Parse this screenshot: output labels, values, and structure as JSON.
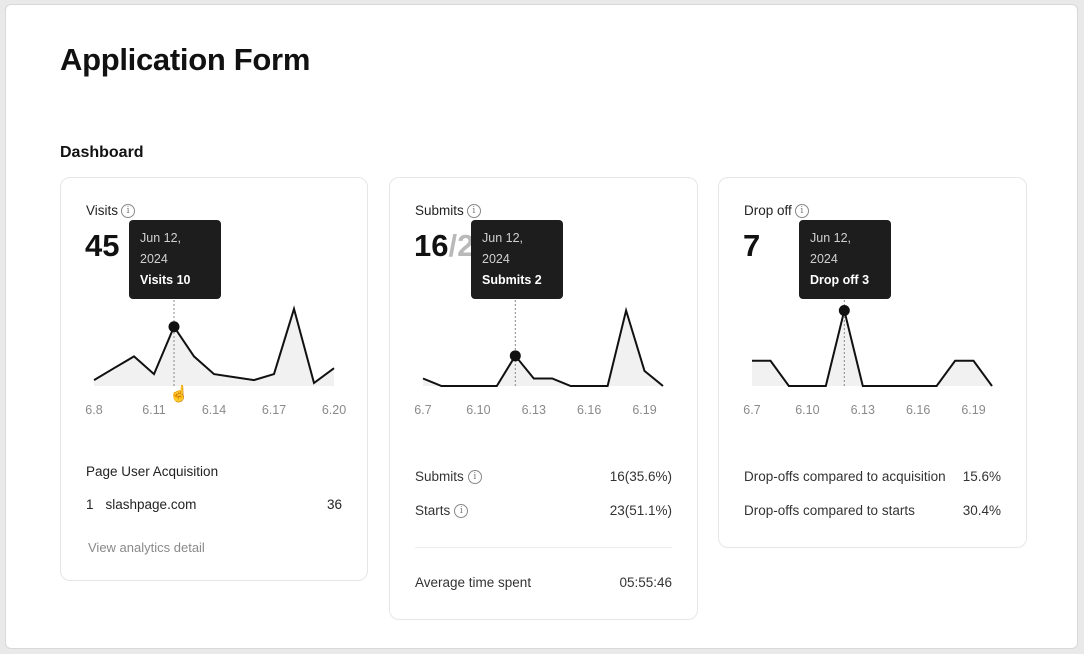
{
  "page": {
    "title": "Application Form",
    "section": "Dashboard"
  },
  "cards": {
    "visits": {
      "label": "Visits",
      "value": "45",
      "tooltip": {
        "date": "Jun 12, 2024",
        "text": "Visits 10"
      },
      "acquisition": {
        "title": "Page User Acquisition",
        "rank": "1",
        "source": "slashpage.com",
        "count": "36"
      },
      "link": "View analytics detail"
    },
    "submits": {
      "label": "Submits",
      "value": "16",
      "value_suffix": "/2",
      "tooltip": {
        "date": "Jun 12, 2024",
        "text": "Submits 2"
      },
      "stats": [
        {
          "label": "Submits",
          "value": "16(35.6%)"
        },
        {
          "label": "Starts",
          "value": "23(51.1%)"
        }
      ],
      "avg_label": "Average time spent",
      "avg_value": "05:55:46"
    },
    "dropoff": {
      "label": "Drop off",
      "value": "7",
      "tooltip": {
        "date": "Jun 12, 2024",
        "text": "Drop off 3"
      },
      "stats": [
        {
          "label": "Drop-offs compared to acquisition",
          "value": "15.6%"
        },
        {
          "label": "Drop-offs compared to starts",
          "value": "30.4%"
        }
      ]
    }
  },
  "chart_data": [
    {
      "type": "area",
      "title": "Visits",
      "x": [
        "6.8",
        "6.9",
        "6.10",
        "6.11",
        "6.12",
        "6.13",
        "6.14",
        "6.15",
        "6.16",
        "6.17",
        "6.18",
        "6.19",
        "6.20"
      ],
      "tick_labels": [
        "6.8",
        "6.11",
        "6.14",
        "6.17",
        "6.20"
      ],
      "series": [
        {
          "values": [
            1,
            3,
            5,
            2,
            10,
            5,
            2,
            1.5,
            1,
            2,
            13,
            0.5,
            3
          ]
        }
      ],
      "highlight": {
        "x": "6.12",
        "value": 10
      },
      "ylim": [
        0,
        14
      ],
      "grid": false
    },
    {
      "type": "area",
      "title": "Submits",
      "x": [
        "6.7",
        "6.8",
        "6.9",
        "6.10",
        "6.11",
        "6.12",
        "6.13",
        "6.14",
        "6.15",
        "6.16",
        "6.17",
        "6.18",
        "6.19",
        "6.20"
      ],
      "tick_labels": [
        "6.7",
        "6.10",
        "6.13",
        "6.16",
        "6.19"
      ],
      "series": [
        {
          "values": [
            0.5,
            0,
            0,
            0,
            0,
            2,
            0.5,
            0.5,
            0,
            0,
            0,
            5,
            1,
            0
          ]
        }
      ],
      "highlight": {
        "x": "6.12",
        "value": 2
      },
      "ylim": [
        0,
        5.5
      ],
      "grid": false
    },
    {
      "type": "area",
      "title": "Drop off",
      "x": [
        "6.7",
        "6.8",
        "6.9",
        "6.10",
        "6.11",
        "6.12",
        "6.13",
        "6.14",
        "6.15",
        "6.16",
        "6.17",
        "6.18",
        "6.19",
        "6.20"
      ],
      "tick_labels": [
        "6.7",
        "6.10",
        "6.13",
        "6.16",
        "6.19"
      ],
      "series": [
        {
          "values": [
            1,
            1,
            0,
            0,
            0,
            3,
            0,
            0,
            0,
            0,
            0,
            1,
            1,
            0
          ]
        }
      ],
      "highlight": {
        "x": "6.12",
        "value": 3
      },
      "ylim": [
        0,
        3.3
      ],
      "grid": false
    }
  ]
}
